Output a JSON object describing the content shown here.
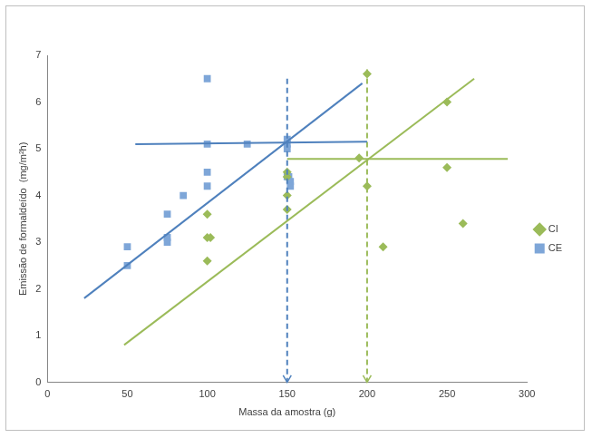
{
  "chart_data": {
    "type": "scatter",
    "x_label": "Massa da amostra (g)",
    "y_label": "Emissão de formaldeído  (mg/m²h)",
    "xlim": [
      0,
      300
    ],
    "xticks": [
      0,
      50,
      100,
      150,
      200,
      250,
      300
    ],
    "ylim": [
      0,
      7
    ],
    "yticks": [
      0,
      1,
      2,
      3,
      4,
      5,
      6,
      7
    ],
    "grid": false,
    "legend": "right",
    "series": [
      {
        "name": "CI",
        "color": "#9BBB59",
        "marker": "diamond",
        "x": [
          100,
          100,
          102,
          100,
          150,
          150,
          150,
          150,
          195,
          200,
          200,
          210,
          250,
          250,
          260
        ],
        "values": [
          3.6,
          3.1,
          3.1,
          2.6,
          4.5,
          4.4,
          4.0,
          3.7,
          4.8,
          6.6,
          4.2,
          2.9,
          6.0,
          4.6,
          3.4
        ]
      },
      {
        "name": "CE",
        "color": "#7EA6D8",
        "marker": "square",
        "x": [
          50,
          50,
          75,
          75,
          75,
          85,
          100,
          100,
          100,
          100,
          125,
          150,
          150,
          150,
          150,
          151,
          152,
          152
        ],
        "values": [
          2.9,
          2.5,
          3.6,
          3.1,
          3.0,
          4.0,
          6.5,
          5.1,
          4.5,
          4.2,
          5.1,
          5.2,
          5.1,
          5.0,
          4.4,
          4.4,
          4.3,
          4.2
        ]
      }
    ],
    "lines": [
      {
        "color": "#4F81BD",
        "line_style": "solid",
        "x": [
          23,
          197
        ],
        "values": [
          1.8,
          6.4
        ]
      },
      {
        "color": "#4F81BD",
        "line_style": "solid",
        "x": [
          55,
          200
        ],
        "values": [
          5.1,
          5.15
        ]
      },
      {
        "color": "#9BBB59",
        "line_style": "solid",
        "x": [
          48,
          267
        ],
        "values": [
          0.8,
          6.5
        ]
      },
      {
        "color": "#9BBB59",
        "line_style": "solid",
        "x": [
          150,
          288
        ],
        "values": [
          4.78,
          4.78
        ]
      },
      {
        "color": "#4F81BD",
        "line_style": "dashed",
        "marker": "arrow",
        "x": [
          150,
          150
        ],
        "values": [
          6.5,
          0
        ]
      },
      {
        "color": "#9BBB59",
        "line_style": "dashed",
        "marker": "arrow",
        "x": [
          200,
          200
        ],
        "values": [
          6.7,
          0
        ]
      }
    ]
  }
}
